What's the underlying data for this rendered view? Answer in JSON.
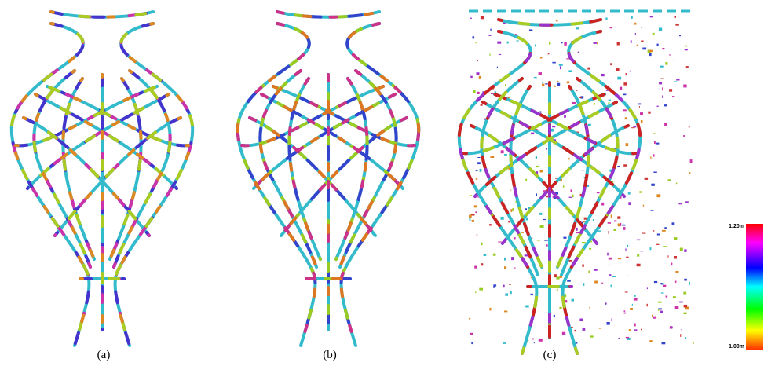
{
  "panels": [
    {
      "caption": "(a)"
    },
    {
      "caption": "(b)"
    },
    {
      "caption": "(c)"
    }
  ],
  "colorbar": {
    "top_label": "1.20m",
    "bottom_label": "1.00m"
  }
}
